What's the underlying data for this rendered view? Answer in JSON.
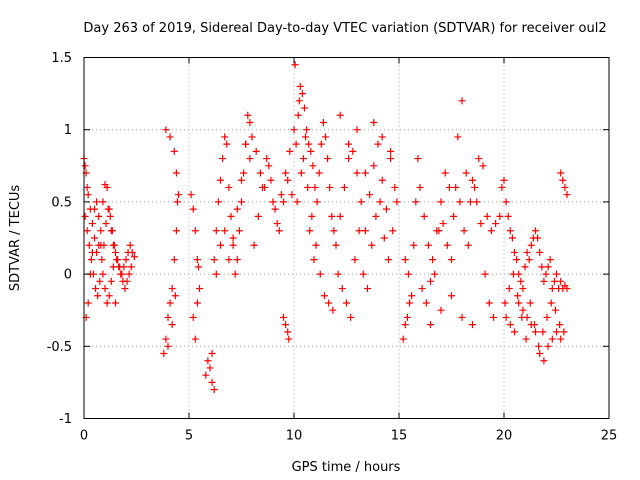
{
  "chart_data": {
    "type": "scatter",
    "title": "Day 263 of 2019, Sidereal Day-to-day VTEC variation (SDTVAR) for receiver oul2",
    "xlabel": "GPS time / hours",
    "ylabel": "SDTVAR / TECUs",
    "xlim": [
      0,
      25
    ],
    "ylim": [
      -1,
      1.5
    ],
    "xticks": [
      0,
      5,
      10,
      15,
      20,
      25
    ],
    "xtick_labels": [
      "0",
      "5",
      "10",
      "15",
      "20",
      "25"
    ],
    "yticks": [
      -1,
      -0.5,
      0,
      0.5,
      1,
      1.5
    ],
    "ytick_labels": [
      "-1",
      "-0.5",
      "0",
      "0.5",
      "1",
      "1.5"
    ],
    "grid": true,
    "marker": "+",
    "color": "#ff0000",
    "series": [
      {
        "name": "SDTVAR",
        "x": [
          0.0,
          0.05,
          0.1,
          0.15,
          0.2,
          0.3,
          0.4,
          0.5,
          0.6,
          0.7,
          0.8,
          0.9,
          1.0,
          1.1,
          1.2,
          1.3,
          1.4,
          1.5,
          1.6,
          1.7,
          1.8,
          1.9,
          2.0,
          2.1,
          2.2,
          2.3,
          2.4,
          0.05,
          0.15,
          0.25,
          0.35,
          0.45,
          0.55,
          0.65,
          0.75,
          0.85,
          0.95,
          1.05,
          1.15,
          1.25,
          1.35,
          1.45,
          1.55,
          1.65,
          1.75,
          1.85,
          1.95,
          2.05,
          2.15,
          2.25,
          0.1,
          0.2,
          0.3,
          0.4,
          0.5,
          0.6,
          0.7,
          0.8,
          0.9,
          1.0,
          1.1,
          1.2,
          1.3,
          1.4,
          1.5,
          3.8,
          3.9,
          4.0,
          4.1,
          4.2,
          4.3,
          4.4,
          4.5,
          3.9,
          4.1,
          4.3,
          4.4,
          4.45,
          4.0,
          4.2,
          4.35,
          5.1,
          5.2,
          5.3,
          5.4,
          5.5,
          5.2,
          5.3,
          5.4,
          5.45,
          5.8,
          5.9,
          6.0,
          6.1,
          6.2,
          6.3,
          6.4,
          6.5,
          6.6,
          6.7,
          6.8,
          6.9,
          7.0,
          7.1,
          7.2,
          7.3,
          7.4,
          7.5,
          7.6,
          7.7,
          7.8,
          7.9,
          6.1,
          6.2,
          6.3,
          6.5,
          6.7,
          6.9,
          7.1,
          7.3,
          7.5,
          7.7,
          7.9,
          8.0,
          8.2,
          8.4,
          8.6,
          8.8,
          9.0,
          9.2,
          9.4,
          9.6,
          9.8,
          8.1,
          8.3,
          8.5,
          8.7,
          8.9,
          9.1,
          9.3,
          9.5,
          9.7,
          9.9,
          9.5,
          9.6,
          9.7,
          9.75,
          10.0,
          10.1,
          10.2,
          10.3,
          10.4,
          10.5,
          10.6,
          10.7,
          10.8,
          10.9,
          11.0,
          11.1,
          11.2,
          11.3,
          11.4,
          11.5,
          11.6,
          11.7,
          11.8,
          11.9,
          10.05,
          10.25,
          10.45,
          10.65,
          10.85,
          11.05,
          11.25,
          11.45,
          11.65,
          11.85,
          10.15,
          10.35,
          10.55,
          10.75,
          10.95,
          12.0,
          12.2,
          12.4,
          12.6,
          12.8,
          13.0,
          13.2,
          13.4,
          13.6,
          13.8,
          14.0,
          14.2,
          14.4,
          14.6,
          14.8,
          12.1,
          12.3,
          12.5,
          12.7,
          12.9,
          13.1,
          13.3,
          13.5,
          13.7,
          13.9,
          14.1,
          14.3,
          14.5,
          14.7,
          14.9,
          12.2,
          12.6,
          13.0,
          13.4,
          13.8,
          14.2,
          14.6,
          15.2,
          15.3,
          15.4,
          15.5,
          15.6,
          15.3,
          15.45,
          15.7,
          15.8,
          15.9,
          16.0,
          16.2,
          16.4,
          16.6,
          16.8,
          17.0,
          17.2,
          17.4,
          17.6,
          17.8,
          18.0,
          18.2,
          18.4,
          18.6,
          18.8,
          19.0,
          19.2,
          19.4,
          19.6,
          16.1,
          16.3,
          16.5,
          16.7,
          16.9,
          17.1,
          17.3,
          17.5,
          17.7,
          17.9,
          18.1,
          18.3,
          18.5,
          18.7,
          18.9,
          19.1,
          19.3,
          19.5,
          16.5,
          17.0,
          17.5,
          18.0,
          18.5,
          19.8,
          19.9,
          20.0,
          20.1,
          20.2,
          20.3,
          20.4,
          20.5,
          20.6,
          20.7,
          20.8,
          20.9,
          21.0,
          21.1,
          21.2,
          21.3,
          21.4,
          21.5,
          21.6,
          21.7,
          21.8,
          21.9,
          22.0,
          22.1,
          22.2,
          22.3,
          22.4,
          22.5,
          22.6,
          22.7,
          22.8,
          22.9,
          23.0,
          20.05,
          20.25,
          20.45,
          20.65,
          20.85,
          21.05,
          21.25,
          21.45,
          21.65,
          21.85,
          22.05,
          22.25,
          22.45,
          22.65,
          22.85,
          20.1,
          20.3,
          20.5,
          20.7,
          20.9,
          21.1,
          21.3,
          21.5,
          21.7,
          21.9,
          22.1,
          22.3,
          22.5,
          22.7,
          22.7,
          22.8,
          22.9,
          23.0
        ],
        "y": [
          0.8,
          0.75,
          0.7,
          0.6,
          0.55,
          0.45,
          0.35,
          0.25,
          0.15,
          0.2,
          0.3,
          0.5,
          0.62,
          0.6,
          0.45,
          0.3,
          0.2,
          0.15,
          0.1,
          0.05,
          0.0,
          0.05,
          0.1,
          0.15,
          0.2,
          0.15,
          0.12,
          0.4,
          0.3,
          0.2,
          0.1,
          0.0,
          -0.1,
          -0.15,
          -0.05,
          0.1,
          0.2,
          0.35,
          0.45,
          0.4,
          0.3,
          0.2,
          0.1,
          0.05,
          0.0,
          -0.05,
          -0.1,
          -0.05,
          0.0,
          0.05,
          -0.3,
          -0.2,
          0.0,
          0.15,
          0.45,
          0.5,
          0.4,
          0.2,
          0.0,
          -0.1,
          -0.2,
          -0.15,
          -0.05,
          0.05,
          -0.2,
          -0.55,
          -0.45,
          -0.3,
          -0.2,
          -0.1,
          0.1,
          0.3,
          0.55,
          1.0,
          0.95,
          0.85,
          0.7,
          0.5,
          -0.5,
          -0.35,
          -0.15,
          0.55,
          0.45,
          0.3,
          0.1,
          -0.1,
          -0.3,
          -0.45,
          -0.2,
          0.05,
          -0.7,
          -0.6,
          -0.65,
          -0.55,
          0.1,
          0.3,
          0.5,
          0.65,
          0.8,
          0.95,
          0.9,
          0.6,
          0.4,
          0.2,
          0.0,
          0.1,
          0.3,
          0.5,
          0.7,
          0.9,
          1.1,
          1.05,
          -0.75,
          -0.8,
          0.0,
          0.2,
          0.3,
          0.1,
          0.25,
          0.45,
          0.65,
          0.9,
          0.8,
          0.95,
          0.85,
          0.7,
          0.6,
          0.75,
          0.5,
          0.35,
          0.55,
          0.7,
          0.85,
          0.2,
          0.4,
          0.6,
          0.8,
          0.65,
          0.45,
          0.3,
          0.5,
          0.65,
          0.55,
          -0.3,
          -0.35,
          -0.4,
          -0.45,
          1.0,
          0.9,
          1.1,
          1.3,
          1.25,
          1.15,
          1.0,
          0.9,
          0.85,
          0.75,
          0.6,
          0.5,
          0.7,
          0.9,
          1.05,
          0.95,
          0.8,
          0.6,
          0.4,
          0.3,
          1.45,
          1.2,
          0.8,
          0.6,
          0.4,
          0.2,
          0.0,
          -0.15,
          -0.2,
          -0.25,
          0.5,
          0.7,
          0.95,
          0.3,
          0.1,
          0.2,
          0.4,
          0.6,
          0.8,
          0.85,
          0.7,
          0.5,
          0.3,
          0.55,
          0.75,
          0.9,
          0.65,
          0.45,
          0.8,
          0.6,
          0.0,
          -0.1,
          -0.2,
          -0.3,
          0.1,
          0.3,
          0.0,
          -0.1,
          0.2,
          0.4,
          0.5,
          0.25,
          0.1,
          0.3,
          0.5,
          1.1,
          0.9,
          1.0,
          0.7,
          1.05,
          0.95,
          0.85,
          -0.45,
          -0.35,
          -0.3,
          -0.2,
          -0.15,
          0.1,
          0.0,
          0.2,
          0.5,
          0.8,
          0.6,
          0.4,
          0.2,
          0.1,
          0.3,
          0.5,
          0.7,
          0.6,
          0.4,
          0.95,
          1.2,
          0.7,
          0.5,
          0.6,
          0.8,
          0.75,
          0.4,
          0.3,
          0.35,
          -0.1,
          -0.2,
          -0.05,
          0.0,
          0.3,
          0.35,
          0.2,
          0.1,
          0.6,
          0.5,
          0.3,
          0.2,
          0.65,
          0.5,
          0.35,
          0.0,
          -0.2,
          -0.3,
          -0.35,
          -0.25,
          -0.15,
          -0.3,
          -0.35,
          0.4,
          0.6,
          0.65,
          0.5,
          0.4,
          0.3,
          0.25,
          0.15,
          0.1,
          0.0,
          -0.05,
          -0.1,
          0.05,
          0.15,
          0.1,
          0.2,
          0.25,
          0.3,
          0.25,
          0.15,
          0.05,
          -0.05,
          0.0,
          0.05,
          0.1,
          -0.1,
          -0.05,
          0.0,
          -0.1,
          -0.05,
          -0.1,
          -0.08,
          -0.1,
          -0.2,
          -0.1,
          0.0,
          -0.15,
          -0.3,
          -0.45,
          -0.2,
          -0.35,
          -0.5,
          -0.4,
          -0.3,
          -0.2,
          -0.25,
          -0.35,
          -0.4,
          -0.3,
          -0.35,
          -0.4,
          -0.2,
          -0.25,
          -0.3,
          -0.35,
          -0.4,
          -0.55,
          -0.6,
          -0.5,
          -0.45,
          -0.4,
          -0.45,
          0.7,
          0.65,
          0.6,
          0.55
        ]
      }
    ]
  }
}
